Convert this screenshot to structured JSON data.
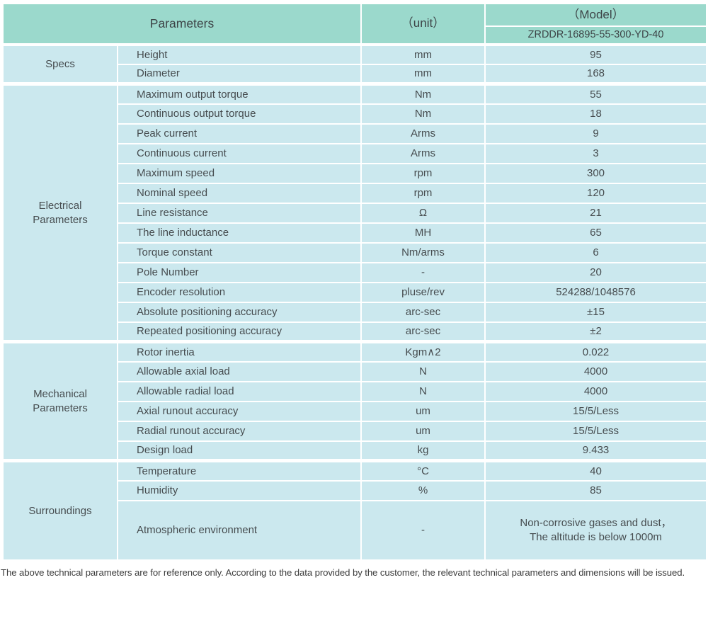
{
  "colors": {
    "header_bg": "#9bd9cc",
    "row_bg": "#cbe8ee",
    "grid": "#ffffff",
    "text": "#464c4f"
  },
  "header": {
    "parameters_label": "Parameters",
    "unit_label": "（unit）",
    "model_label": "（Model）",
    "model_value": "ZRDDR-16895-55-300-YD-40"
  },
  "sections": [
    {
      "category": "Specs",
      "rows": [
        {
          "name": "Height",
          "unit": "mm",
          "value": "95"
        },
        {
          "name": "Diameter",
          "unit": "mm",
          "value": "168"
        }
      ]
    },
    {
      "category": "Electrical\nParameters",
      "rows": [
        {
          "name": "Maximum output torque",
          "unit": "Nm",
          "value": "55"
        },
        {
          "name": "Continuous output torque",
          "unit": "Nm",
          "value": "18"
        },
        {
          "name": "Peak current",
          "unit": "Arms",
          "value": "9"
        },
        {
          "name": "Continuous current",
          "unit": "Arms",
          "value": "3"
        },
        {
          "name": "Maximum speed",
          "unit": "rpm",
          "value": "300"
        },
        {
          "name": "Nominal speed",
          "unit": "rpm",
          "value": "120"
        },
        {
          "name": "Line resistance",
          "unit": "Ω",
          "value": "21"
        },
        {
          "name": "The line inductance",
          "unit": "MH",
          "value": "65"
        },
        {
          "name": "Torque constant",
          "unit": "Nm/arms",
          "value": "6"
        },
        {
          "name": "Pole Number",
          "unit": "-",
          "value": "20"
        },
        {
          "name": "Encoder resolution",
          "unit": "pluse/rev",
          "value": "524288/1048576"
        },
        {
          "name": "Absolute positioning accuracy",
          "unit": "arc-sec",
          "value": "±15"
        },
        {
          "name": "Repeated positioning accuracy",
          "unit": "arc-sec",
          "value": "±2"
        }
      ]
    },
    {
      "category": "Mechanical\nParameters",
      "rows": [
        {
          "name": "Rotor inertia",
          "unit": "Kgm∧2",
          "value": "0.022"
        },
        {
          "name": "Allowable axial load",
          "unit": "N",
          "value": "4000"
        },
        {
          "name": "Allowable radial load",
          "unit": "N",
          "value": "4000"
        },
        {
          "name": "Axial runout accuracy",
          "unit": "um",
          "value": "15/5/Less"
        },
        {
          "name": "Radial runout accuracy",
          "unit": "um",
          "value": "15/5/Less"
        },
        {
          "name": "Design load",
          "unit": "kg",
          "value": "9.433"
        }
      ]
    },
    {
      "category": "Surroundings",
      "rows": [
        {
          "name": "Temperature",
          "unit": "°C",
          "value": "40"
        },
        {
          "name": "Humidity",
          "unit": "%",
          "value": "85"
        },
        {
          "name": "Atmospheric environment",
          "unit": "-",
          "value": "Non-corrosive gases and dust，\nThe altitude is below 1000m"
        }
      ]
    }
  ],
  "footer": {
    "note": "The above technical parameters are for reference only. According to the data provided by the customer, the relevant technical parameters and dimensions will be issued."
  }
}
